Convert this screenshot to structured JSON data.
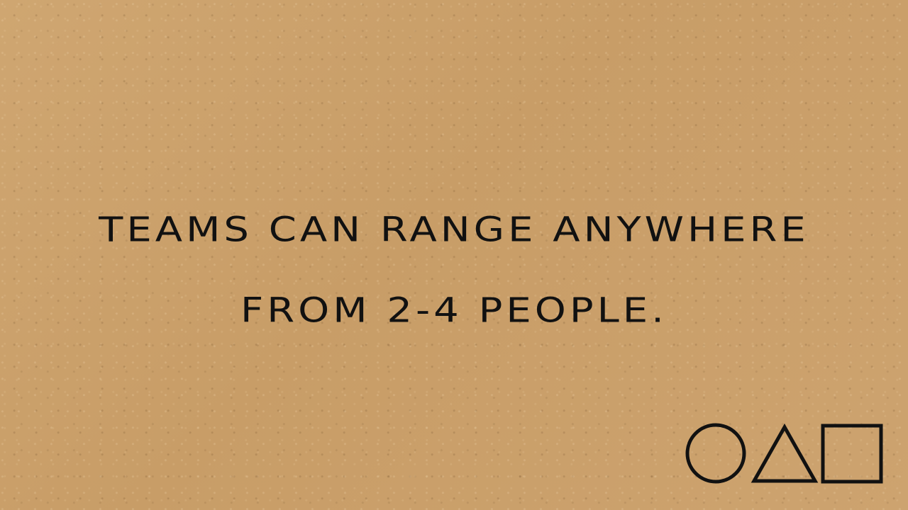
{
  "slide": {
    "lines": [
      "teams can range anywhere",
      "from 2-4 people."
    ],
    "shape_icons": [
      "circle-icon",
      "triangle-icon",
      "square-icon"
    ],
    "text_color": "#111111",
    "background_color": "#c9a06a"
  }
}
